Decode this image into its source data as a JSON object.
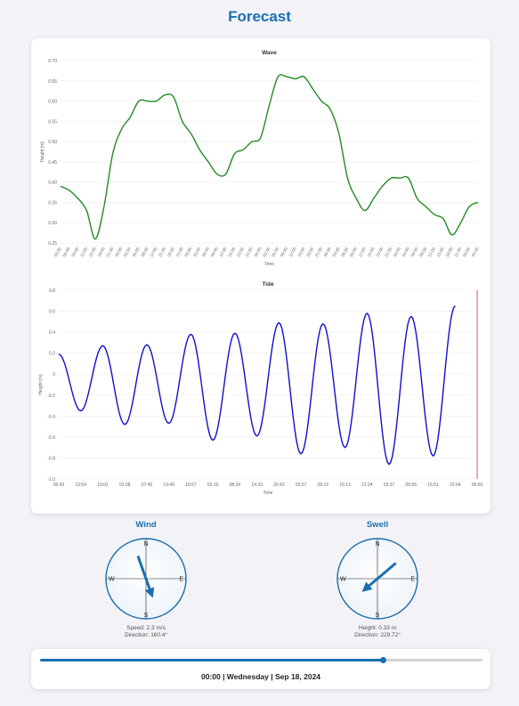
{
  "page": {
    "title": "Forecast"
  },
  "chart_data": [
    {
      "type": "line",
      "title": "Wave",
      "xlabel": "Time",
      "ylabel": "Height (m)",
      "ylim": [
        0.25,
        0.7
      ],
      "yticks": [
        "0.70",
        "0.65",
        "0.60",
        "0.55",
        "0.50",
        "0.45",
        "0.40",
        "0.35",
        "0.30",
        "0.25"
      ],
      "categories": [
        "03:00",
        "06:00",
        "09:00",
        "12:00",
        "15:00",
        "18:00",
        "21:00",
        "00:00",
        "03:00",
        "06:00",
        "09:00",
        "12:00",
        "15:00",
        "18:00",
        "21:00",
        "00:00",
        "03:00",
        "06:00",
        "09:00",
        "12:00",
        "15:00",
        "18:00",
        "21:00",
        "00:00",
        "03:00",
        "06:00",
        "09:00",
        "12:00",
        "15:00",
        "18:00",
        "21:00",
        "00:00",
        "03:00",
        "06:00",
        "09:00",
        "12:00",
        "15:00",
        "18:00",
        "21:00",
        "00:00",
        "03:00",
        "06:00",
        "09:00",
        "12:00",
        "15:00",
        "18:00",
        "21:00",
        "00:00",
        "03:00"
      ],
      "series": [
        {
          "color": "#228b22",
          "values": [
            0.39,
            0.38,
            0.36,
            0.33,
            0.26,
            0.34,
            0.47,
            0.53,
            0.56,
            0.6,
            0.6,
            0.6,
            0.615,
            0.61,
            0.55,
            0.52,
            0.48,
            0.45,
            0.42,
            0.42,
            0.47,
            0.48,
            0.5,
            0.51,
            0.59,
            0.66,
            0.66,
            0.655,
            0.66,
            0.63,
            0.6,
            0.58,
            0.52,
            0.41,
            0.36,
            0.33,
            0.36,
            0.39,
            0.41,
            0.41,
            0.41,
            0.36,
            0.34,
            0.32,
            0.31,
            0.27,
            0.3,
            0.34,
            0.35
          ]
        }
      ]
    },
    {
      "type": "line",
      "title": "Tide",
      "xlabel": "Time",
      "ylabel": "Height (m)",
      "ylim": [
        -1.0,
        0.8
      ],
      "yticks": [
        "0.8",
        "0.6",
        "0.4",
        "0.2",
        "0",
        "-0.2",
        "-0.4",
        "-0.6",
        "-0.8",
        "-1.0"
      ],
      "xticks": [
        "06:43",
        "12:54",
        "19:01",
        "01:28",
        "07:45",
        "13:49",
        "19:57",
        "02:16",
        "08:34",
        "14:33",
        "20:42",
        "02:57",
        "09:16",
        "15:13",
        "21:24",
        "03:37",
        "09:55",
        "15:51",
        "22:04",
        "00:00"
      ],
      "series": [
        {
          "color": "#1010cc",
          "extrema": [
            0.19,
            -0.35,
            0.27,
            -0.48,
            0.28,
            -0.47,
            0.38,
            -0.63,
            0.39,
            -0.59,
            0.49,
            -0.76,
            0.48,
            -0.7,
            0.58,
            -0.86,
            0.55,
            -0.78,
            0.65
          ]
        }
      ],
      "current_time_marker": "00:00"
    }
  ],
  "wind": {
    "title": "Wind",
    "directions": {
      "n": "N",
      "e": "E",
      "s": "S",
      "w": "W"
    },
    "direction_deg": 160.4,
    "speed_text": "Speed: 2.3 m/s",
    "direction_text": "Direction: 160.4°"
  },
  "swell": {
    "title": "Swell",
    "directions": {
      "n": "N",
      "e": "E",
      "s": "S",
      "w": "W"
    },
    "direction_deg": 229.72,
    "height_text": "Height: 0.33 m",
    "direction_text": "Direction: 229.72°"
  },
  "timeline": {
    "progress": 0.775,
    "label": "00:00 | Wednesday | Sep 18, 2024"
  },
  "colors": {
    "accent": "#1a6fb0",
    "wave_line": "#228b22",
    "tide_line": "#1010cc",
    "marker": "#c0392b"
  }
}
